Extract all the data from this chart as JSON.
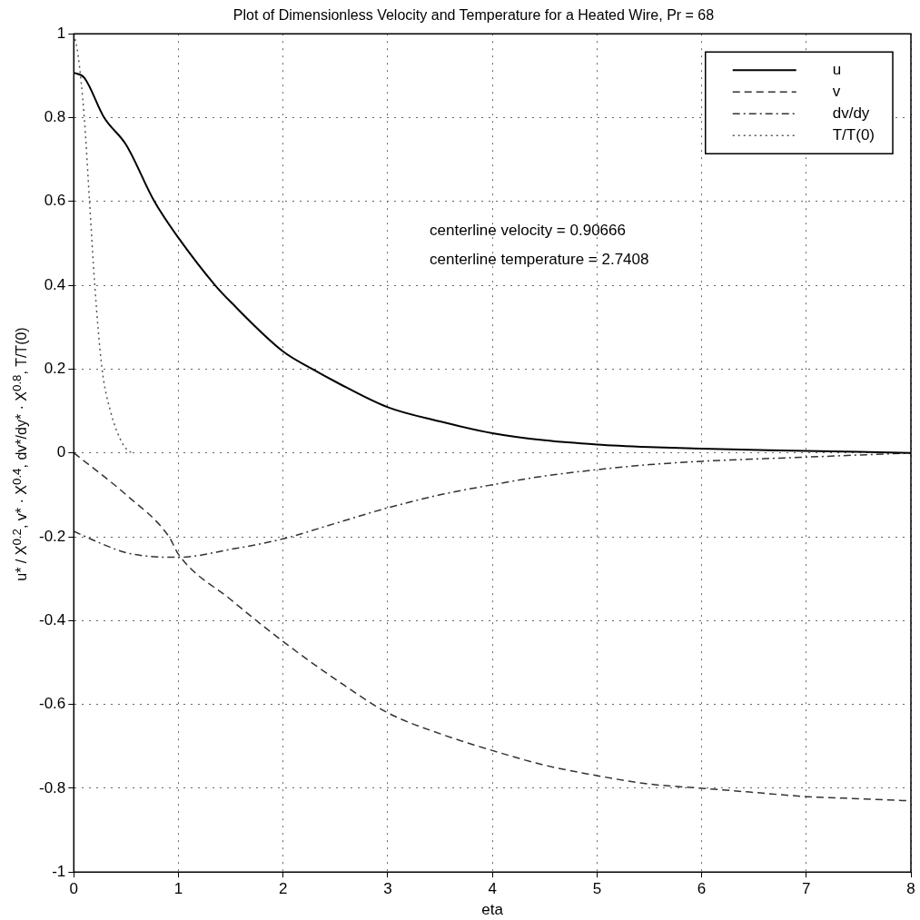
{
  "chart_data": {
    "type": "line",
    "title": "Plot of Dimensionless Velocity and Temperature for a Heated Wire, Pr = 68",
    "xlabel": "eta",
    "ylabel": "u* / X$^{0.2}$, v* · X$^{0.4}$, dv*/dy* · X$^{0.8}$, T/T(0)",
    "xlim": [
      0,
      8
    ],
    "xticks": [
      0,
      1,
      2,
      3,
      4,
      5,
      6,
      7,
      8
    ],
    "ylim": [
      -1,
      1
    ],
    "yticks": [
      -1,
      -0.8,
      -0.6,
      -0.4,
      -0.2,
      0,
      0.2,
      0.4,
      0.6,
      0.8,
      1
    ],
    "grid": true,
    "legend": "top right",
    "marker": "none",
    "annotations": [
      "centerline velocity = 0.90666",
      "centerline temperature = 2.7408"
    ],
    "series": [
      {
        "name": "u",
        "color": "#000000",
        "line_style": "solid",
        "x": [
          0,
          0.1,
          0.29,
          0.5,
          0.77,
          1,
          1.35,
          1.5,
          2,
          2.28,
          2.5,
          3,
          3.5,
          4,
          4.5,
          5,
          5.5,
          6,
          7,
          8
        ],
        "values": [
          0.907,
          0.895,
          0.8,
          0.735,
          0.6,
          0.513,
          0.4,
          0.36,
          0.242,
          0.2,
          0.17,
          0.109,
          0.075,
          0.047,
          0.03,
          0.02,
          0.014,
          0.01,
          0.005,
          0
        ]
      },
      {
        "name": "v",
        "color": "#333333",
        "line_style": "dashed",
        "x": [
          0,
          0.5,
          0.91,
          1,
          1.5,
          2,
          2.5,
          3,
          3.5,
          4,
          4.5,
          5,
          5.5,
          6,
          6.5,
          7,
          7.5,
          8
        ],
        "values": [
          0,
          -0.1,
          -0.2,
          -0.242,
          -0.35,
          -0.45,
          -0.54,
          -0.62,
          -0.67,
          -0.71,
          -0.745,
          -0.77,
          -0.79,
          -0.8,
          -0.81,
          -0.82,
          -0.825,
          -0.83
        ]
      },
      {
        "name": "dv/dy",
        "color": "#333333",
        "line_style": "dashdot",
        "x": [
          0,
          0.25,
          0.5,
          0.8,
          1,
          1.5,
          2,
          2.5,
          3,
          3.5,
          4,
          4.5,
          5,
          5.5,
          6,
          7,
          8
        ],
        "values": [
          -0.187,
          -0.215,
          -0.238,
          -0.248,
          -0.249,
          -0.23,
          -0.205,
          -0.168,
          -0.131,
          -0.1,
          -0.076,
          -0.055,
          -0.04,
          -0.028,
          -0.02,
          -0.01,
          0
        ]
      },
      {
        "name": "T/T(0)",
        "color": "#555555",
        "line_style": "dotted",
        "x": [
          0,
          0.04,
          0.1,
          0.15,
          0.2,
          0.27,
          0.35,
          0.47,
          0.55
        ],
        "values": [
          1,
          0.95,
          0.8,
          0.6,
          0.4,
          0.2,
          0.1,
          0.02,
          0
        ]
      }
    ]
  }
}
